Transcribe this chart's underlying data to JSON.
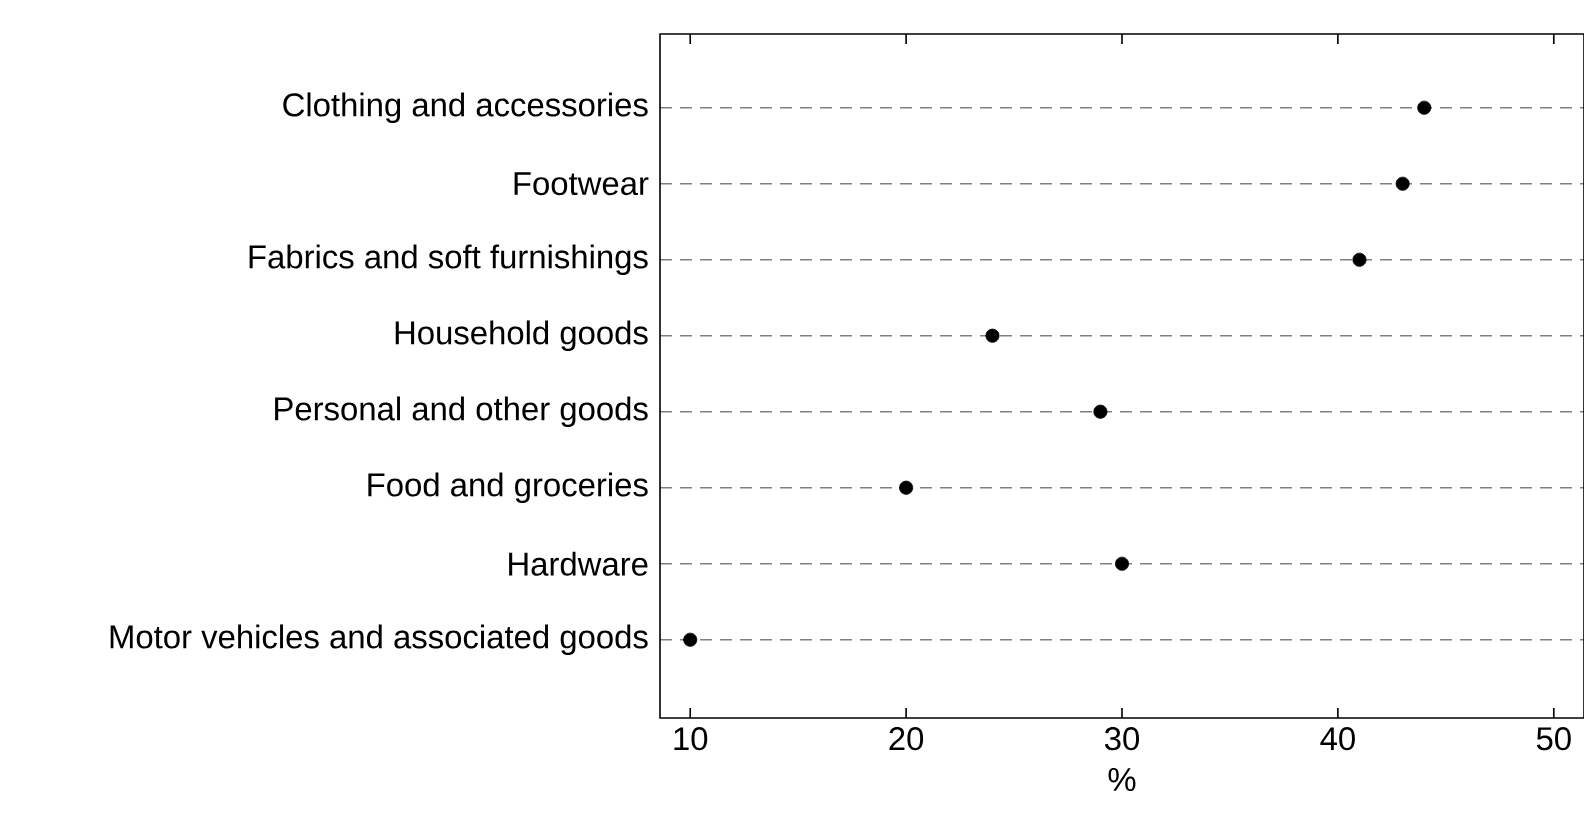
{
  "chart_data": {
    "type": "scatter",
    "orientation": "horizontal",
    "categories": [
      "Clothing and accessories",
      "Footwear",
      "Fabrics and soft furnishings",
      "Household goods",
      "Personal and other goods",
      "Food and groceries",
      "Hardware",
      "Motor vehicles and associated goods"
    ],
    "values": [
      44,
      43,
      41,
      24,
      29,
      20,
      30,
      10
    ],
    "color": "#000000",
    "marker": "circle",
    "xlabel": "%",
    "xlim": [
      8.6,
      51.4
    ],
    "xticks": [
      10,
      20,
      30,
      40,
      50
    ],
    "grid": "y"
  }
}
